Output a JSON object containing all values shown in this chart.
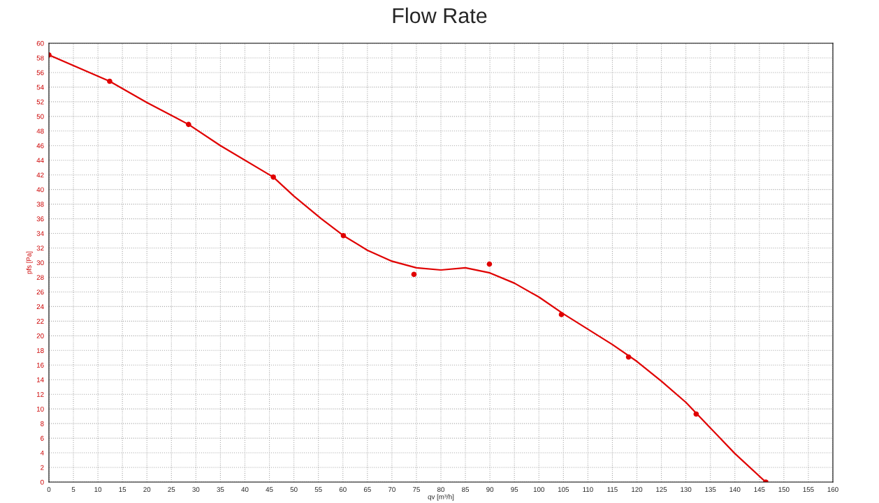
{
  "chart_data": {
    "type": "line",
    "title": "Flow Rate",
    "xlabel": "qv [m³/h]",
    "ylabel": "pfs [Pa]",
    "xlim": [
      0,
      160
    ],
    "xticks": [
      0,
      5,
      10,
      15,
      20,
      25,
      30,
      35,
      40,
      45,
      50,
      55,
      60,
      65,
      70,
      75,
      80,
      85,
      90,
      95,
      100,
      105,
      110,
      115,
      120,
      125,
      130,
      135,
      140,
      145,
      150,
      155,
      160
    ],
    "ylim": [
      0,
      60
    ],
    "yticks": [
      0,
      2,
      4,
      6,
      8,
      10,
      12,
      14,
      16,
      18,
      20,
      22,
      24,
      26,
      28,
      30,
      32,
      34,
      36,
      38,
      40,
      42,
      44,
      46,
      48,
      50,
      52,
      54,
      56,
      58,
      60
    ],
    "grid": true,
    "series": [
      {
        "color": "#e00000",
        "marker": "none",
        "line_style": "solid",
        "x": [
          0,
          12.4,
          20,
          28.5,
          35,
          45.8,
          50,
          55.6,
          60.1,
          65,
          70,
          75,
          80,
          85,
          90,
          95,
          100,
          105,
          110,
          115,
          120,
          125,
          130,
          135,
          140,
          146.3
        ],
        "values": [
          58.4,
          54.8,
          51.9,
          48.9,
          46.0,
          41.7,
          39.1,
          36.0,
          33.7,
          31.7,
          30.2,
          29.3,
          29.0,
          29.3,
          28.6,
          27.2,
          25.3,
          23.0,
          20.9,
          18.8,
          16.5,
          13.8,
          10.9,
          7.4,
          3.9,
          0
        ]
      },
      {
        "type": "scatter",
        "color": "#e00000",
        "marker": "circle",
        "x": [
          0,
          12.4,
          28.5,
          45.8,
          60.1,
          74.5,
          89.9,
          104.6,
          118.3,
          132.1,
          146.3
        ],
        "values": [
          58.4,
          54.8,
          48.9,
          41.7,
          33.7,
          28.4,
          29.8,
          22.9,
          17.1,
          9.3,
          0
        ]
      }
    ]
  }
}
